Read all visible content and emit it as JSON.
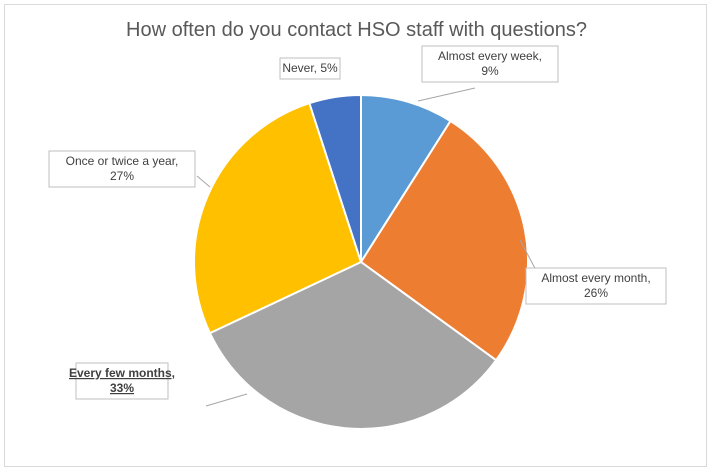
{
  "chart_data": {
    "type": "pie",
    "title": "How often do you contact HSO staff with questions?",
    "slices": [
      {
        "label_lines": [
          "Almost every week,",
          "9%"
        ],
        "value": 9,
        "color": "#5b9bd5"
      },
      {
        "label_lines": [
          "Almost every month,",
          "26%"
        ],
        "value": 26,
        "color": "#ed7d31"
      },
      {
        "label_lines": [
          "Every few months,",
          "33%"
        ],
        "value": 33,
        "color": "#a5a5a5",
        "bold": true
      },
      {
        "label_lines": [
          "Once or twice a year,",
          "27%"
        ],
        "value": 27,
        "color": "#ffc000"
      },
      {
        "label_lines": [
          "Never, 5%"
        ],
        "value": 5,
        "color": "#4472c4"
      }
    ],
    "legend": false
  }
}
